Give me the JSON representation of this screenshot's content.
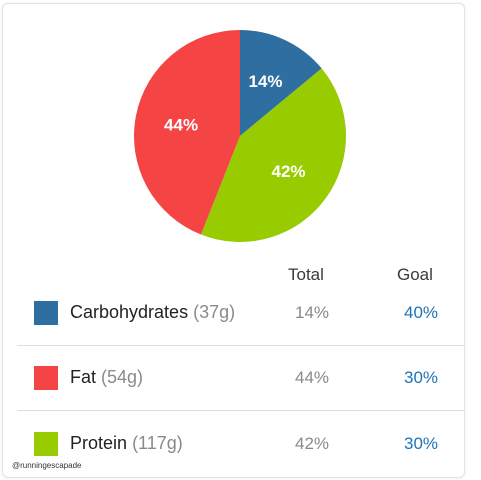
{
  "chart_data": {
    "type": "pie",
    "slices": [
      {
        "label": "Carbohydrates",
        "value": 14,
        "display": "14%",
        "color": "#2f6ea0"
      },
      {
        "label": "Protein",
        "value": 42,
        "display": "42%",
        "color": "#99cc00"
      },
      {
        "label": "Fat",
        "value": 44,
        "display": "44%",
        "color": "#f44444"
      }
    ]
  },
  "table": {
    "headers": {
      "total": "Total",
      "goal": "Goal"
    },
    "rows": [
      {
        "name": "Carbohydrates",
        "grams": "(37g)",
        "total": "14%",
        "goal": "40%",
        "color": "#2f6ea0"
      },
      {
        "name": "Fat",
        "grams": "(54g)",
        "total": "44%",
        "goal": "30%",
        "color": "#f44444"
      },
      {
        "name": "Protein",
        "grams": "(117g)",
        "total": "42%",
        "goal": "30%",
        "color": "#99cc00"
      }
    ],
    "goal_color": "#1f73b7"
  },
  "watermark": "@runningescapade"
}
